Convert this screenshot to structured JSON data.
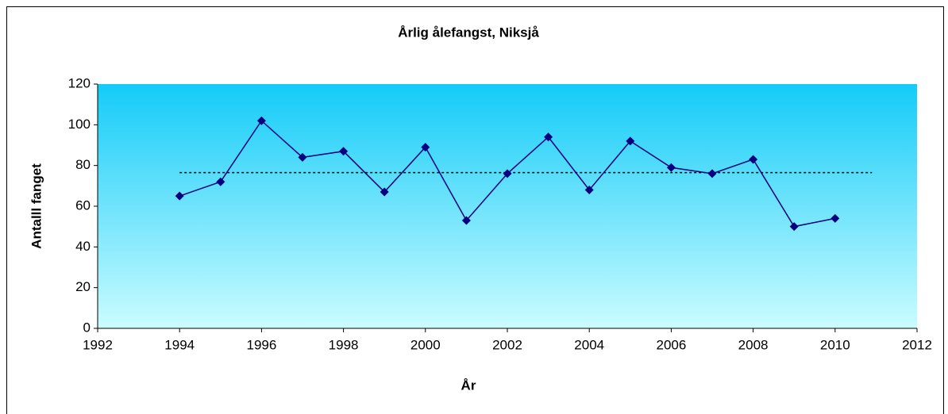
{
  "chart_data": {
    "type": "line",
    "title": "Årlig ålefangst, Niksjå",
    "x_label": "År",
    "y_label": "Antalll fanget",
    "x": [
      1994,
      1995,
      1996,
      1997,
      1998,
      1999,
      2000,
      2001,
      2002,
      2003,
      2004,
      2005,
      2006,
      2007,
      2008,
      2009,
      2010
    ],
    "series": [
      {
        "color": "#000080",
        "values": [
          65,
          72,
          102,
          84,
          87,
          67,
          89,
          53,
          76,
          94,
          68,
          92,
          79,
          76,
          83,
          50,
          54
        ]
      }
    ],
    "reference_line": {
      "y": 76.5,
      "x": [
        1994,
        2010.9
      ],
      "style": "dotted",
      "color": "#000000"
    },
    "xlim": [
      1992,
      2012
    ],
    "xticks": [
      1992,
      1994,
      1996,
      1998,
      2000,
      2002,
      2004,
      2006,
      2008,
      2010,
      2012
    ],
    "ylim": [
      0,
      120
    ],
    "yticks": [
      0,
      20,
      40,
      60,
      80,
      100,
      120
    ],
    "grid": false
  }
}
